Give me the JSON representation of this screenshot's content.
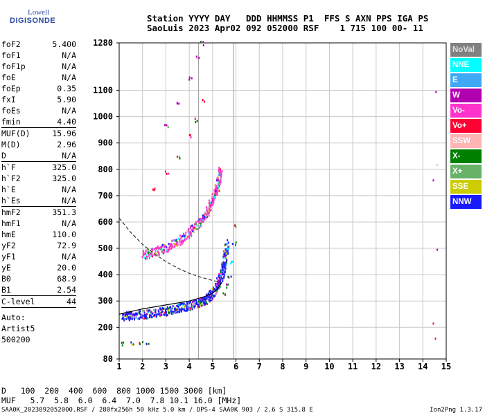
{
  "logo": {
    "line1": "Lowell",
    "line2": "DIGISONDE"
  },
  "header": {
    "line1": "Station YYYY DAY   DDD HHMMSS P1  FFS S AXN PPS IGA PS",
    "line2": "SaoLuis 2023 Apr02 092 052000 RSF    1 715 100 00- 11"
  },
  "params": [
    {
      "name": "foF2",
      "value": "5.400"
    },
    {
      "name": "foF1",
      "value": "N/A"
    },
    {
      "name": "foF1p",
      "value": "N/A"
    },
    {
      "name": "foE",
      "value": "N/A"
    },
    {
      "name": "foEp",
      "value": "0.35"
    },
    {
      "name": "fxI",
      "value": "5.90"
    },
    {
      "name": "foEs",
      "value": "N/A"
    },
    {
      "name": "fmin",
      "value": "4.40",
      "sep": true
    },
    {
      "name": "MUF(D)",
      "value": "15.96"
    },
    {
      "name": "M(D)",
      "value": "2.96"
    },
    {
      "name": "D",
      "value": "N/A",
      "sep": true
    },
    {
      "name": "h`F",
      "value": "325.0"
    },
    {
      "name": "h`F2",
      "value": "325.0"
    },
    {
      "name": "h`E",
      "value": "N/A"
    },
    {
      "name": "h`Es",
      "value": "N/A",
      "sep": true
    },
    {
      "name": "hmF2",
      "value": "351.3"
    },
    {
      "name": "hmF1",
      "value": "N/A"
    },
    {
      "name": "hmE",
      "value": "110.0"
    },
    {
      "name": "yF2",
      "value": "72.9"
    },
    {
      "name": "yF1",
      "value": "N/A"
    },
    {
      "name": "yE",
      "value": "20.0"
    },
    {
      "name": "B0",
      "value": "68.9"
    },
    {
      "name": "B1",
      "value": "2.54",
      "sep": true
    },
    {
      "name": "C-level",
      "value": "44",
      "sep": true
    }
  ],
  "autoscaling": [
    "Auto:",
    "Artist5",
    "500200"
  ],
  "legend": [
    {
      "label": "NoVal",
      "bg": "#808080",
      "fg": "#e0e0e0"
    },
    {
      "label": "NNE",
      "bg": "#00ffff",
      "fg": "#ffffff"
    },
    {
      "label": "E",
      "bg": "#3fa9f5",
      "fg": "#ffffff"
    },
    {
      "label": "W",
      "bg": "#b000b0",
      "fg": "#ffffff"
    },
    {
      "label": "Vo-",
      "bg": "#ff33cc",
      "fg": "#ffffff"
    },
    {
      "label": "Vo+",
      "bg": "#ff0033",
      "fg": "#ffffff"
    },
    {
      "label": "SSW",
      "bg": "#ffb3b3",
      "fg": "#ffffff"
    },
    {
      "label": "X-",
      "bg": "#008000",
      "fg": "#ffffff"
    },
    {
      "label": "X+",
      "bg": "#66b266",
      "fg": "#ffffff"
    },
    {
      "label": "SSE",
      "bg": "#cccc00",
      "fg": "#ffffff"
    },
    {
      "label": "NNW",
      "bg": "#1a1aff",
      "fg": "#ffffff"
    }
  ],
  "muf_table": {
    "d_label": "D",
    "d_values": [
      "100",
      "200",
      "400",
      "600",
      "800",
      "1000",
      "1500",
      "3000"
    ],
    "d_unit": "[km]",
    "muf_label": "MUF",
    "muf_values": [
      "5.7",
      "5.8",
      "6.0",
      "6.4",
      "7.0",
      "7.8",
      "10.1",
      "16.0"
    ],
    "muf_unit": "[MHz]"
  },
  "footer": "SAA0K_2023092052000.RSF / 280fx256h 50 kHz 5.0 km / DPS-4 SAA0K 903 / 2.6 S 315.8 E",
  "version": "Ion2Png 1.3.17",
  "chart_data": {
    "type": "scatter",
    "title": "",
    "xlabel": "",
    "ylabel": "",
    "xlim": [
      1,
      15
    ],
    "ylim": [
      80,
      1280
    ],
    "x_ticks": [
      1,
      2,
      3,
      4,
      5,
      6,
      7,
      8,
      9,
      10,
      11,
      12,
      13,
      14,
      15
    ],
    "y_ticks": [
      80,
      200,
      300,
      400,
      500,
      600,
      700,
      800,
      900,
      1000,
      1100,
      1280
    ],
    "vgrid_extra": [
      4.4,
      5.9
    ],
    "series": [
      {
        "name": "F2 trace (1st hop)",
        "color": "#1a1aff",
        "points": [
          [
            1.1,
            245
          ],
          [
            1.5,
            248
          ],
          [
            2.0,
            252
          ],
          [
            2.5,
            258
          ],
          [
            3.0,
            265
          ],
          [
            3.5,
            275
          ],
          [
            4.0,
            285
          ],
          [
            4.5,
            298
          ],
          [
            4.8,
            315
          ],
          [
            5.0,
            335
          ],
          [
            5.2,
            365
          ],
          [
            5.4,
            410
          ],
          [
            5.5,
            460
          ],
          [
            5.6,
            520
          ]
        ]
      },
      {
        "name": "F2 trace (2nd hop)",
        "color": "#ff33cc",
        "points": [
          [
            2.0,
            478
          ],
          [
            2.5,
            490
          ],
          [
            3.0,
            505
          ],
          [
            3.5,
            530
          ],
          [
            4.0,
            565
          ],
          [
            4.5,
            610
          ],
          [
            4.8,
            650
          ],
          [
            5.0,
            690
          ],
          [
            5.2,
            740
          ],
          [
            5.3,
            800
          ]
        ]
      },
      {
        "name": "F2 trace (3rd hop)",
        "color": "#ff0033",
        "points": [
          [
            2.5,
            730
          ],
          [
            3.0,
            790
          ],
          [
            3.5,
            850
          ],
          [
            4.0,
            930
          ],
          [
            4.3,
            990
          ],
          [
            4.6,
            1060
          ]
        ]
      },
      {
        "name": "F2 trace (4th hop)",
        "color": "#b000b0",
        "points": [
          [
            3.0,
            970
          ],
          [
            3.5,
            1060
          ],
          [
            4.0,
            1150
          ],
          [
            4.3,
            1230
          ],
          [
            4.5,
            1280
          ]
        ]
      },
      {
        "name": "X trace",
        "color": "#008000",
        "points": [
          [
            5.5,
            330
          ],
          [
            5.6,
            360
          ],
          [
            5.7,
            400
          ],
          [
            5.8,
            450
          ],
          [
            5.9,
            520
          ],
          [
            6.0,
            590
          ]
        ]
      },
      {
        "name": "Low-frequency echoes",
        "color": "#008000",
        "points": [
          [
            1.1,
            142
          ],
          [
            1.5,
            142
          ],
          [
            1.9,
            142
          ],
          [
            2.2,
            142
          ]
        ]
      },
      {
        "name": "Right-edge echoes",
        "color": "#b000b0",
        "points": [
          [
            14.5,
            1100
          ],
          [
            14.5,
            820
          ],
          [
            14.5,
            760
          ],
          [
            14.5,
            500
          ],
          [
            14.5,
            220
          ],
          [
            14.5,
            160
          ]
        ]
      }
    ],
    "model_profile": {
      "color": "#000000",
      "points": [
        [
          1.0,
          250
        ],
        [
          1.5,
          260
        ],
        [
          2.0,
          270
        ],
        [
          3.0,
          285
        ],
        [
          4.0,
          300
        ],
        [
          4.6,
          315
        ],
        [
          5.0,
          330
        ],
        [
          5.2,
          345
        ],
        [
          5.4,
          370
        ]
      ]
    },
    "dashed_profile": {
      "color": "#333333",
      "points": [
        [
          1.0,
          615
        ],
        [
          1.5,
          560
        ],
        [
          2.0,
          515
        ],
        [
          2.5,
          480
        ],
        [
          3.0,
          450
        ],
        [
          3.5,
          425
        ],
        [
          4.0,
          405
        ],
        [
          4.5,
          390
        ],
        [
          5.0,
          378
        ],
        [
          5.4,
          370
        ]
      ]
    }
  }
}
